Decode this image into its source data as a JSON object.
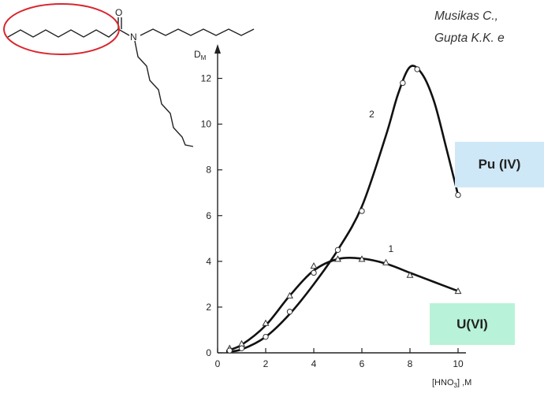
{
  "references": {
    "line1": "Musikas C.,",
    "line2": "Gupta K.K. e"
  },
  "molecule": {
    "atoms": {
      "oxygen": "O",
      "nitrogen": "N"
    }
  },
  "badges": {
    "pu": {
      "label": "Pu (IV)",
      "color": "#cfe8f7"
    },
    "u": {
      "label": "U(VI)",
      "color": "#b8f2d8"
    }
  },
  "highlight_color": "#d9262e",
  "chart_data": {
    "type": "line",
    "ylabel": "D",
    "ylabel_sub": "M",
    "xlabel_main": "[HNO",
    "xlabel_sub": "3",
    "xlabel_tail": "] ,M",
    "xlim": [
      0,
      10
    ],
    "ylim": [
      0,
      12.5
    ],
    "xticks": [
      0,
      2,
      4,
      6,
      8,
      10
    ],
    "yticks": [
      0,
      2,
      4,
      6,
      8,
      10,
      12
    ],
    "grid": false,
    "series": [
      {
        "name": "1",
        "marker": "triangle",
        "points": [
          [
            0.5,
            0.2
          ],
          [
            1,
            0.4
          ],
          [
            2,
            1.3
          ],
          [
            3,
            2.5
          ],
          [
            4,
            3.8
          ],
          [
            5,
            4.1
          ],
          [
            6,
            4.1
          ],
          [
            7,
            3.95
          ],
          [
            8,
            3.4
          ],
          [
            10,
            2.7
          ]
        ],
        "curve": [
          [
            0.4,
            0.1
          ],
          [
            1,
            0.35
          ],
          [
            2,
            1.2
          ],
          [
            3,
            2.5
          ],
          [
            4,
            3.6
          ],
          [
            5,
            4.1
          ],
          [
            6,
            4.12
          ],
          [
            7,
            3.9
          ],
          [
            8,
            3.5
          ],
          [
            9,
            3.1
          ],
          [
            10,
            2.7
          ]
        ]
      },
      {
        "name": "2",
        "marker": "circle",
        "points": [
          [
            0.5,
            0.1
          ],
          [
            1,
            0.2
          ],
          [
            2,
            0.7
          ],
          [
            3,
            1.8
          ],
          [
            4,
            3.5
          ],
          [
            5,
            4.5
          ],
          [
            6,
            6.2
          ],
          [
            7.7,
            11.8
          ],
          [
            8.3,
            12.4
          ],
          [
            10,
            6.9
          ]
        ],
        "curve": [
          [
            0.4,
            0.05
          ],
          [
            1,
            0.15
          ],
          [
            2,
            0.7
          ],
          [
            3,
            1.7
          ],
          [
            4,
            3.0
          ],
          [
            5,
            4.5
          ],
          [
            6,
            6.4
          ],
          [
            7,
            9.5
          ],
          [
            7.5,
            11.3
          ],
          [
            8,
            12.5
          ],
          [
            8.5,
            12.2
          ],
          [
            9,
            11.0
          ],
          [
            9.5,
            9.0
          ],
          [
            10,
            6.9
          ]
        ]
      }
    ]
  }
}
